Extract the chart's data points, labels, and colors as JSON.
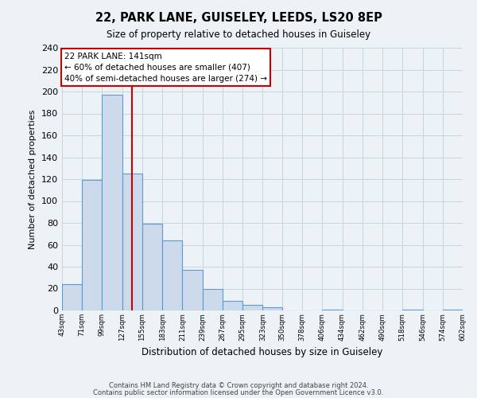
{
  "title": "22, PARK LANE, GUISELEY, LEEDS, LS20 8EP",
  "subtitle": "Size of property relative to detached houses in Guiseley",
  "xlabel": "Distribution of detached houses by size in Guiseley",
  "ylabel": "Number of detached properties",
  "bar_edges": [
    43,
    71,
    99,
    127,
    155,
    183,
    211,
    239,
    267,
    295,
    323,
    350,
    378,
    406,
    434,
    462,
    490,
    518,
    546,
    574,
    602
  ],
  "bar_heights": [
    24,
    119,
    197,
    125,
    79,
    64,
    37,
    20,
    9,
    5,
    3,
    0,
    0,
    1,
    0,
    0,
    0,
    1,
    0,
    1
  ],
  "bar_fill": "#ccdaeb",
  "bar_edge_color": "#5b9bd5",
  "vline_x": 141,
  "vline_color": "#cc0000",
  "annotation_text": "22 PARK LANE: 141sqm\n← 60% of detached houses are smaller (407)\n40% of semi-detached houses are larger (274) →",
  "annotation_box_color": "#ffffff",
  "annotation_box_edgecolor": "#cc0000",
  "ylim": [
    0,
    240
  ],
  "yticks": [
    0,
    20,
    40,
    60,
    80,
    100,
    120,
    140,
    160,
    180,
    200,
    220,
    240
  ],
  "tick_labels": [
    "43sqm",
    "71sqm",
    "99sqm",
    "127sqm",
    "155sqm",
    "183sqm",
    "211sqm",
    "239sqm",
    "267sqm",
    "295sqm",
    "323sqm",
    "350sqm",
    "378sqm",
    "406sqm",
    "434sqm",
    "462sqm",
    "490sqm",
    "518sqm",
    "546sqm",
    "574sqm",
    "602sqm"
  ],
  "footer_line1": "Contains HM Land Registry data © Crown copyright and database right 2024.",
  "footer_line2": "Contains public sector information licensed under the Open Government Licence v3.0.",
  "bg_color": "#edf2f7",
  "grid_color": "#c8d4de"
}
